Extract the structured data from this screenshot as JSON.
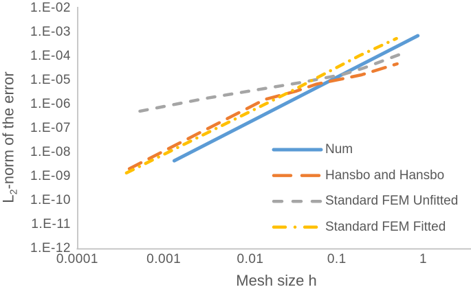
{
  "figure": {
    "background": "#FFFFFF"
  },
  "chart_data": {
    "type": "line",
    "title": "",
    "x_scale": "log",
    "y_scale": "log",
    "xlabel": "Mesh size h",
    "ylabel": "L2-norm of the error",
    "ylabel_parts": {
      "prefix": "L",
      "sub": "2",
      "rest": "-norm of the error"
    },
    "xlim": [
      0.0001,
      1
    ],
    "ylim": [
      1e-12,
      0.01
    ],
    "grid": false,
    "axis_color": "#BFBFBF",
    "text_color": "#595959",
    "x_tick_labels": [
      "0.0001",
      "0.001",
      "0.01",
      "0.1",
      "1"
    ],
    "y_tick_labels": [
      "1.E-02",
      "1.E-03",
      "1.E-04",
      "1.E-05",
      "1.E-06",
      "1.E-07",
      "1.E-08",
      "1.E-09",
      "1.E-10",
      "1.E-11",
      "1.E-12"
    ],
    "legend": {
      "position": "inside-right"
    },
    "series": [
      {
        "name": "Num",
        "color": "#5B9BD5",
        "line_style": "solid",
        "points": [
          [
            0.00132,
            4.5e-09
          ],
          [
            0.865,
            0.00072
          ]
        ]
      },
      {
        "name": "Hansbo and Hansbo",
        "color": "#ED7D31",
        "line_style": "long-dash",
        "points": [
          [
            0.0004,
            2.1e-09
          ],
          [
            0.0147,
            1.6e-06
          ],
          [
            0.0334,
            3.5e-06
          ],
          [
            0.058,
            6.9e-06
          ],
          [
            0.114,
            1.14e-05
          ],
          [
            0.193,
            1.69e-05
          ],
          [
            0.499,
            4.85e-05
          ]
        ]
      },
      {
        "name": "Standard FEM Unfitted",
        "color": "#A5A5A5",
        "line_style": "short-dash",
        "points": [
          [
            0.00053,
            5.2e-07
          ],
          [
            0.0031,
            1.8e-06
          ],
          [
            0.044,
            8.8e-06
          ],
          [
            0.12,
            1.8e-05
          ],
          [
            0.207,
            3.3e-05
          ],
          [
            0.537,
            0.00012
          ]
        ]
      },
      {
        "name": "Standard FEM Fitted",
        "color": "#FFC000",
        "line_style": "dash-dot",
        "points": [
          [
            0.00037,
            1.4e-09
          ],
          [
            0.0305,
            3.7e-06
          ],
          [
            0.183,
            0.000107
          ],
          [
            0.49,
            0.00055
          ]
        ]
      }
    ]
  }
}
